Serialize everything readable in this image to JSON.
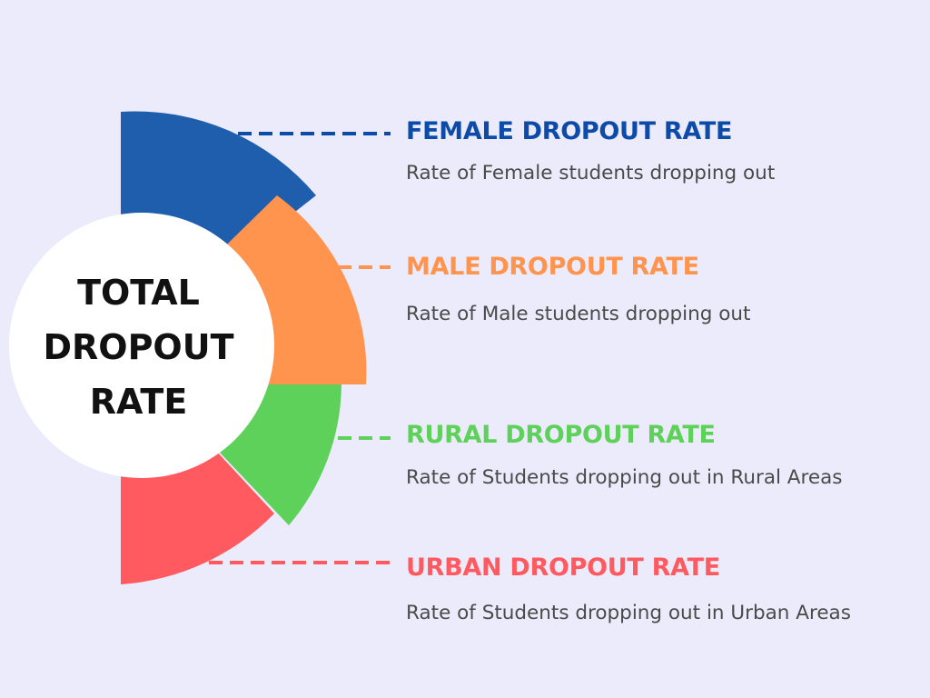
{
  "center": {
    "lines": [
      "TOTAL",
      "DROPOUT",
      "RATE"
    ]
  },
  "segments": [
    {
      "id": "female",
      "title": "FEMALE DROPOUT RATE",
      "description": "Rate of Female students dropping out",
      "color": "#1F5EAD",
      "title_color": "#0D4BA8"
    },
    {
      "id": "male",
      "title": "MALE DROPOUT RATE",
      "description": "Rate of Male students dropping out",
      "color": "#FF944F",
      "title_color": "#FF944F"
    },
    {
      "id": "rural",
      "title": "RURAL DROPOUT RATE",
      "description": "Rate of Students dropping out in Rural Areas",
      "color": "#5ED15A",
      "title_color": "#5ED15A"
    },
    {
      "id": "urban",
      "title": "URBAN DROPOUT RATE",
      "description": "Rate of Students dropping out in Urban Areas",
      "color": "#FF5A5F",
      "title_color": "#FF5A5F"
    }
  ],
  "background_color": "#ECEBFC"
}
